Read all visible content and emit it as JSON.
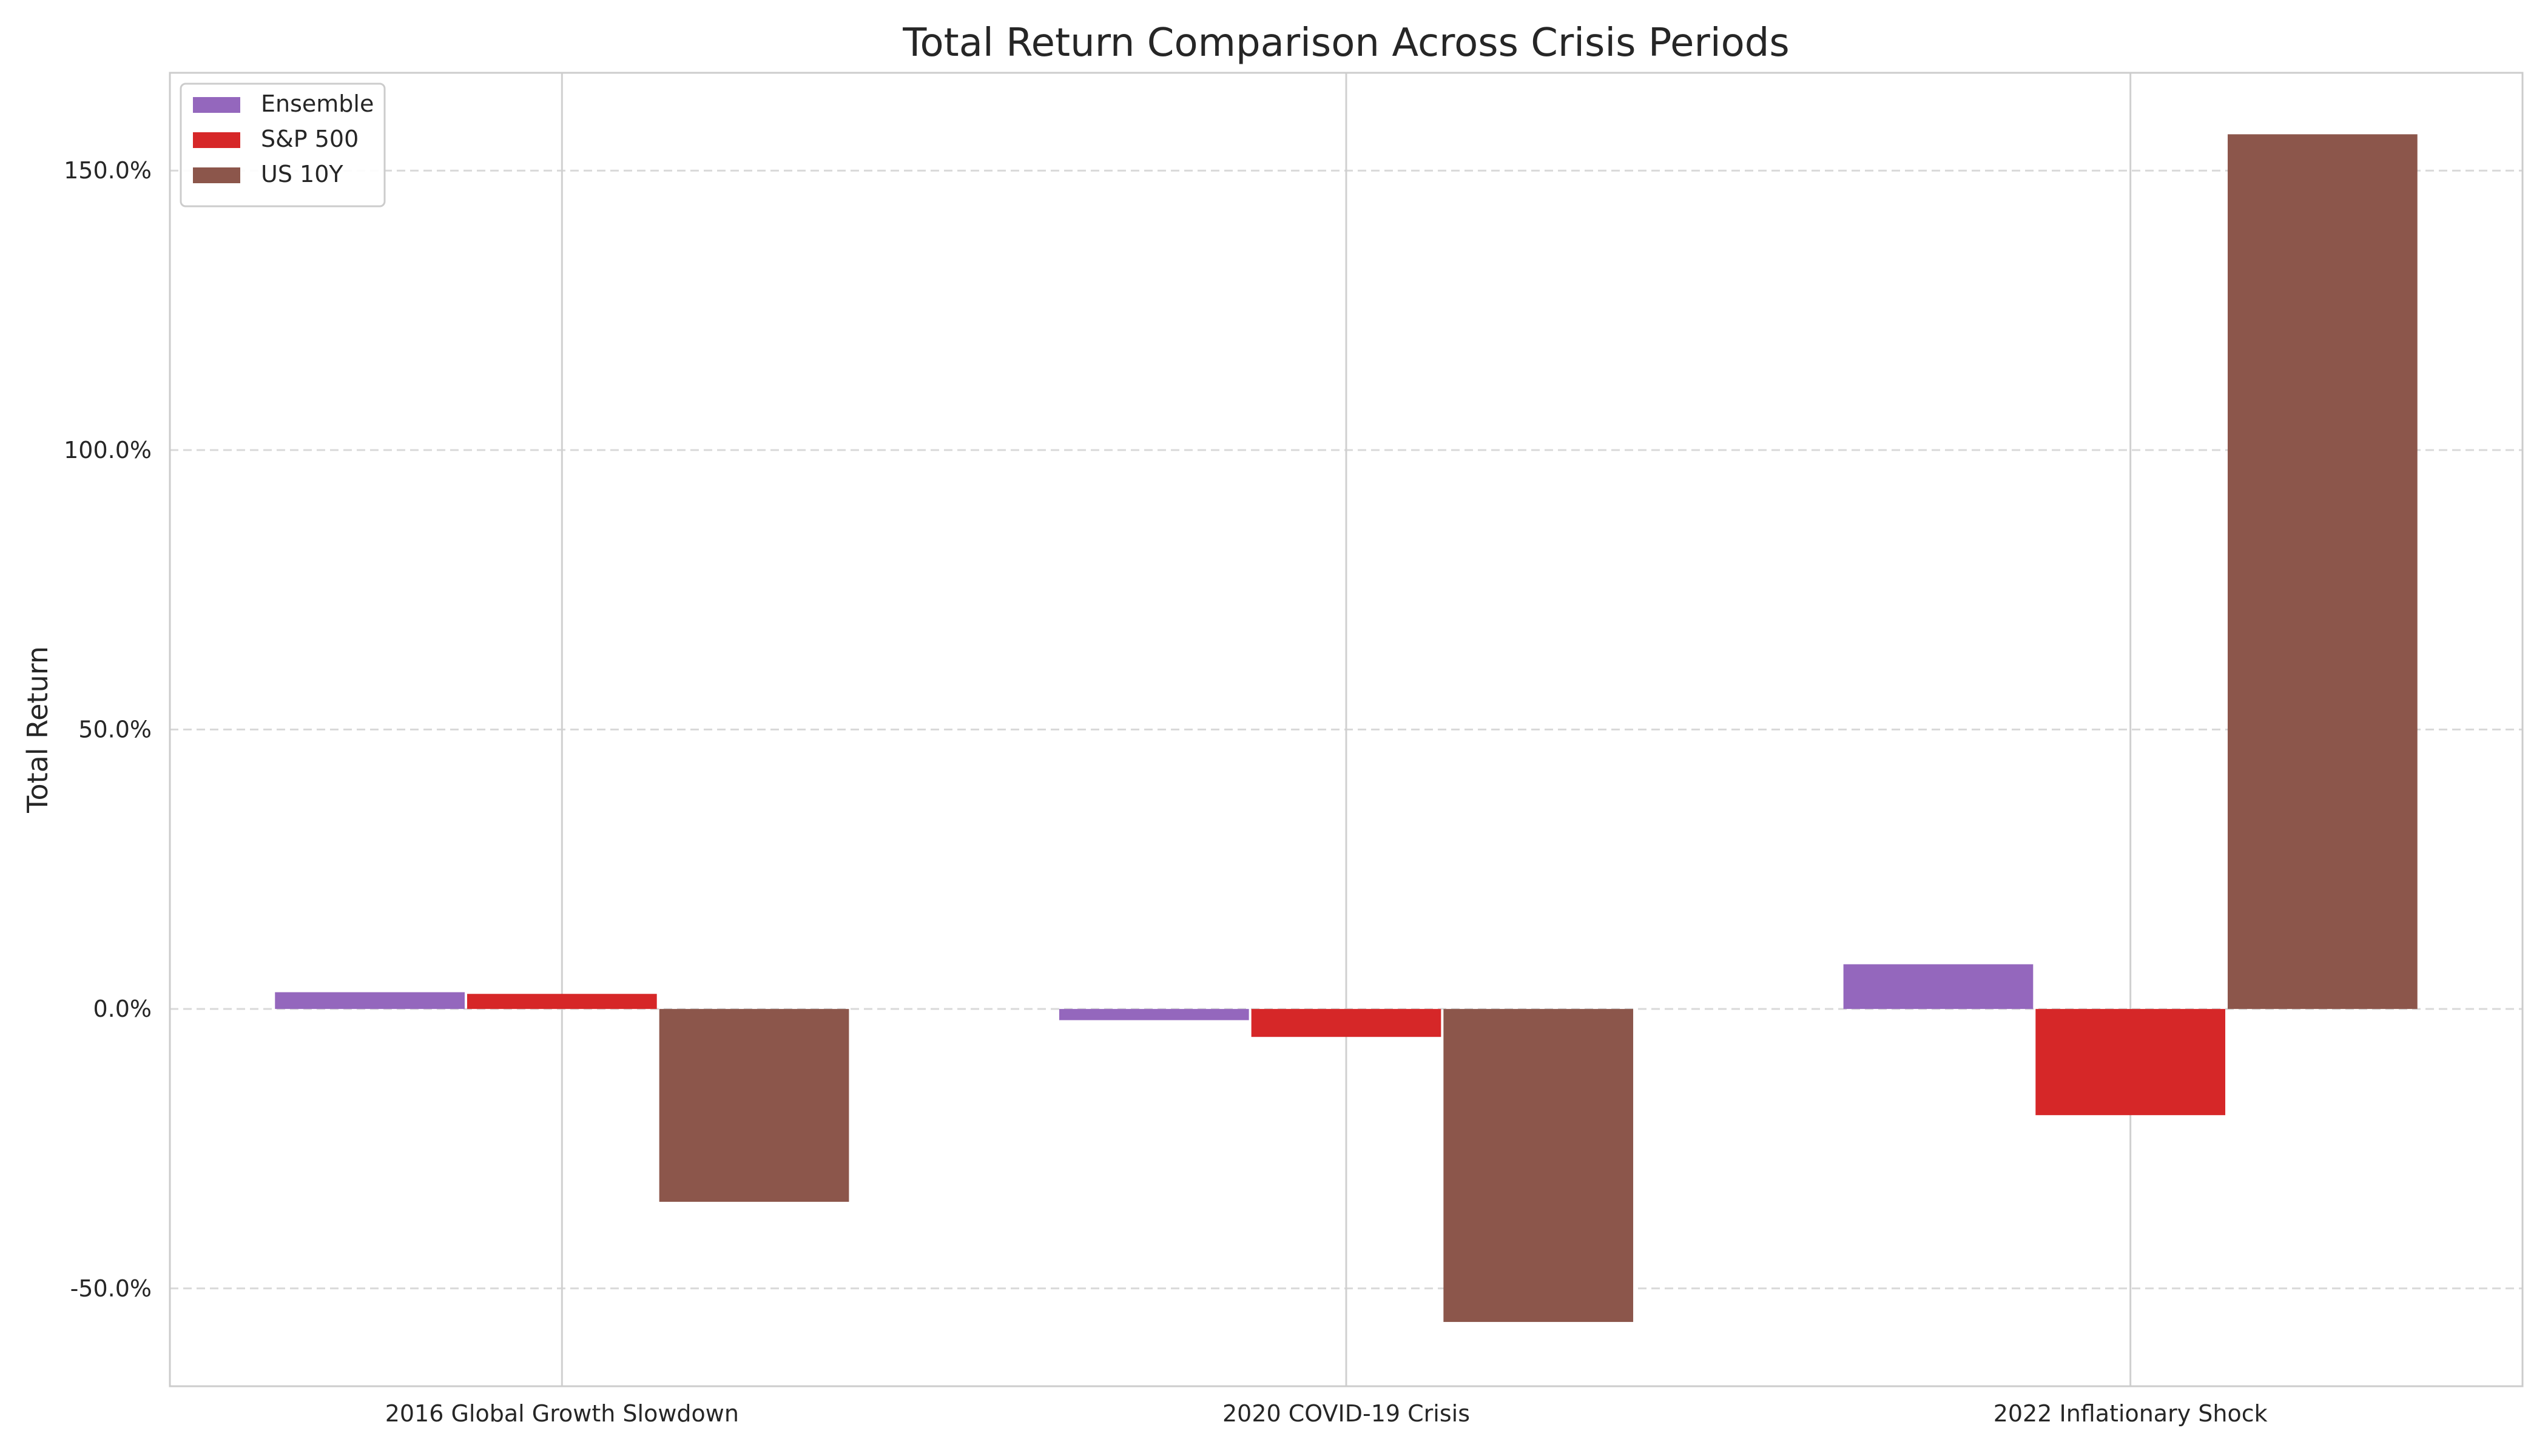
{
  "chart_data": {
    "type": "bar",
    "title": "Total Return Comparison Across Crisis Periods",
    "xlabel": "",
    "ylabel": "Total Return",
    "categories": [
      "2016 Global Growth Slowdown",
      "2020 COVID-19 Crisis",
      "2022 Inflationary Shock"
    ],
    "series": [
      {
        "name": "Ensemble",
        "color": "#9467bd",
        "values": [
          3.0,
          -2.0,
          8.0
        ]
      },
      {
        "name": "S&P 500",
        "color": "#d62728",
        "values": [
          2.7,
          -5.0,
          -19.0
        ]
      },
      {
        "name": "US 10Y",
        "color": "#8c564b",
        "values": [
          -34.5,
          -56.0,
          156.5
        ]
      }
    ],
    "ylim": [
      -67.5,
      167.5
    ],
    "yticks": [
      -50,
      0,
      50,
      100,
      150
    ],
    "ytick_labels": [
      "-50.0%",
      "0.0%",
      "50.0%",
      "100.0%",
      "150.0%"
    ],
    "grid": {
      "y": "dashed",
      "x": "solid"
    },
    "legend_position": "upper left"
  }
}
